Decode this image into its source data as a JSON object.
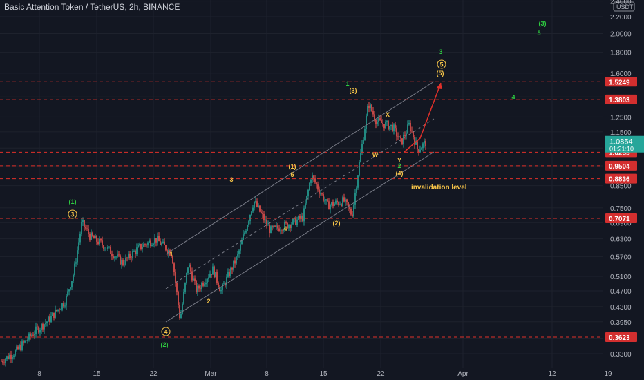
{
  "header": {
    "title": "Basic Attention Token / TetherUS, 2h, BINANCE",
    "currency": "USDT"
  },
  "colors": {
    "background": "#131722",
    "up": "#26a69a",
    "down": "#ef5350",
    "level_line": "#e0302a",
    "level_label_bg": "#d32f2f",
    "price_label_bg": "#26a69a",
    "wave_orange": "#f7c548",
    "wave_green": "#2ecc40",
    "wave_red_arrow": "#e0302a",
    "channel": "#787b86"
  },
  "chart_data": {
    "type": "candlestick",
    "y_scale": "log",
    "y_ticks": [
      "2.4000",
      "2.2000",
      "2.0000",
      "1.8000",
      "1.6000",
      "1.4000",
      "1.2500",
      "1.1500",
      "1.0500",
      "0.9500",
      "0.8500",
      "0.7500",
      "0.6900",
      "0.6300",
      "0.5700",
      "0.5100",
      "0.4700",
      "0.4300",
      "0.3950",
      "0.3600",
      "0.3300"
    ],
    "x_ticks": [
      "8",
      "15",
      "22",
      "Mar",
      "8",
      "15",
      "22",
      "Apr",
      "12",
      "19"
    ],
    "last_price": "1.0854",
    "countdown": "01:21:10",
    "levels": [
      "1.5249",
      "1.3803",
      "1.0255",
      "0.9504",
      "0.8836",
      "0.7071",
      "0.3623"
    ],
    "series_close_path": [
      [
        "Feb 1",
        0.315
      ],
      [
        "Feb 3",
        0.335
      ],
      [
        "Feb 5",
        0.37
      ],
      [
        "Feb 7",
        0.4
      ],
      [
        "Feb 9",
        0.445
      ],
      [
        "Feb 10",
        0.52
      ],
      [
        "Feb 11",
        0.69
      ],
      [
        "Feb 12",
        0.64
      ],
      [
        "Feb 14",
        0.6
      ],
      [
        "Feb 16",
        0.55
      ],
      [
        "Feb 18",
        0.6
      ],
      [
        "Feb 20",
        0.63
      ],
      [
        "Feb 22",
        0.58
      ],
      [
        "Feb 23",
        0.4
      ],
      [
        "Feb 24",
        0.55
      ],
      [
        "Feb 25",
        0.47
      ],
      [
        "Feb 27",
        0.53
      ],
      [
        "Feb 28",
        0.47
      ],
      [
        "Mar 2",
        0.57
      ],
      [
        "Mar 4",
        0.78
      ],
      [
        "Mar 6",
        0.66
      ],
      [
        "Mar 8",
        0.68
      ],
      [
        "Mar 10",
        0.71
      ],
      [
        "Mar 11",
        0.9
      ],
      [
        "Mar 13",
        0.76
      ],
      [
        "Mar 15",
        0.78
      ],
      [
        "Mar 16",
        0.72
      ],
      [
        "Mar 17",
        1.0
      ],
      [
        "Mar 18",
        1.35
      ],
      [
        "Mar 19",
        1.22
      ],
      [
        "Mar 21",
        1.18
      ],
      [
        "Mar 22",
        1.08
      ],
      [
        "Mar 23",
        1.2
      ],
      [
        "Mar 24",
        1.04
      ],
      [
        "Mar 25",
        1.085
      ]
    ],
    "annotations": {
      "orange": [
        "(1)",
        "3",
        "5",
        "(1)",
        "3",
        "1",
        "2",
        "3",
        "4",
        "(2)",
        "(3)",
        "X",
        "W",
        "Y",
        "(4)",
        "(5)",
        "5",
        "4"
      ],
      "green": [
        "(1)",
        "(2)",
        "1",
        "2",
        "3",
        "(3)",
        "5",
        "4"
      ],
      "invalidation": "invalidation level"
    }
  }
}
